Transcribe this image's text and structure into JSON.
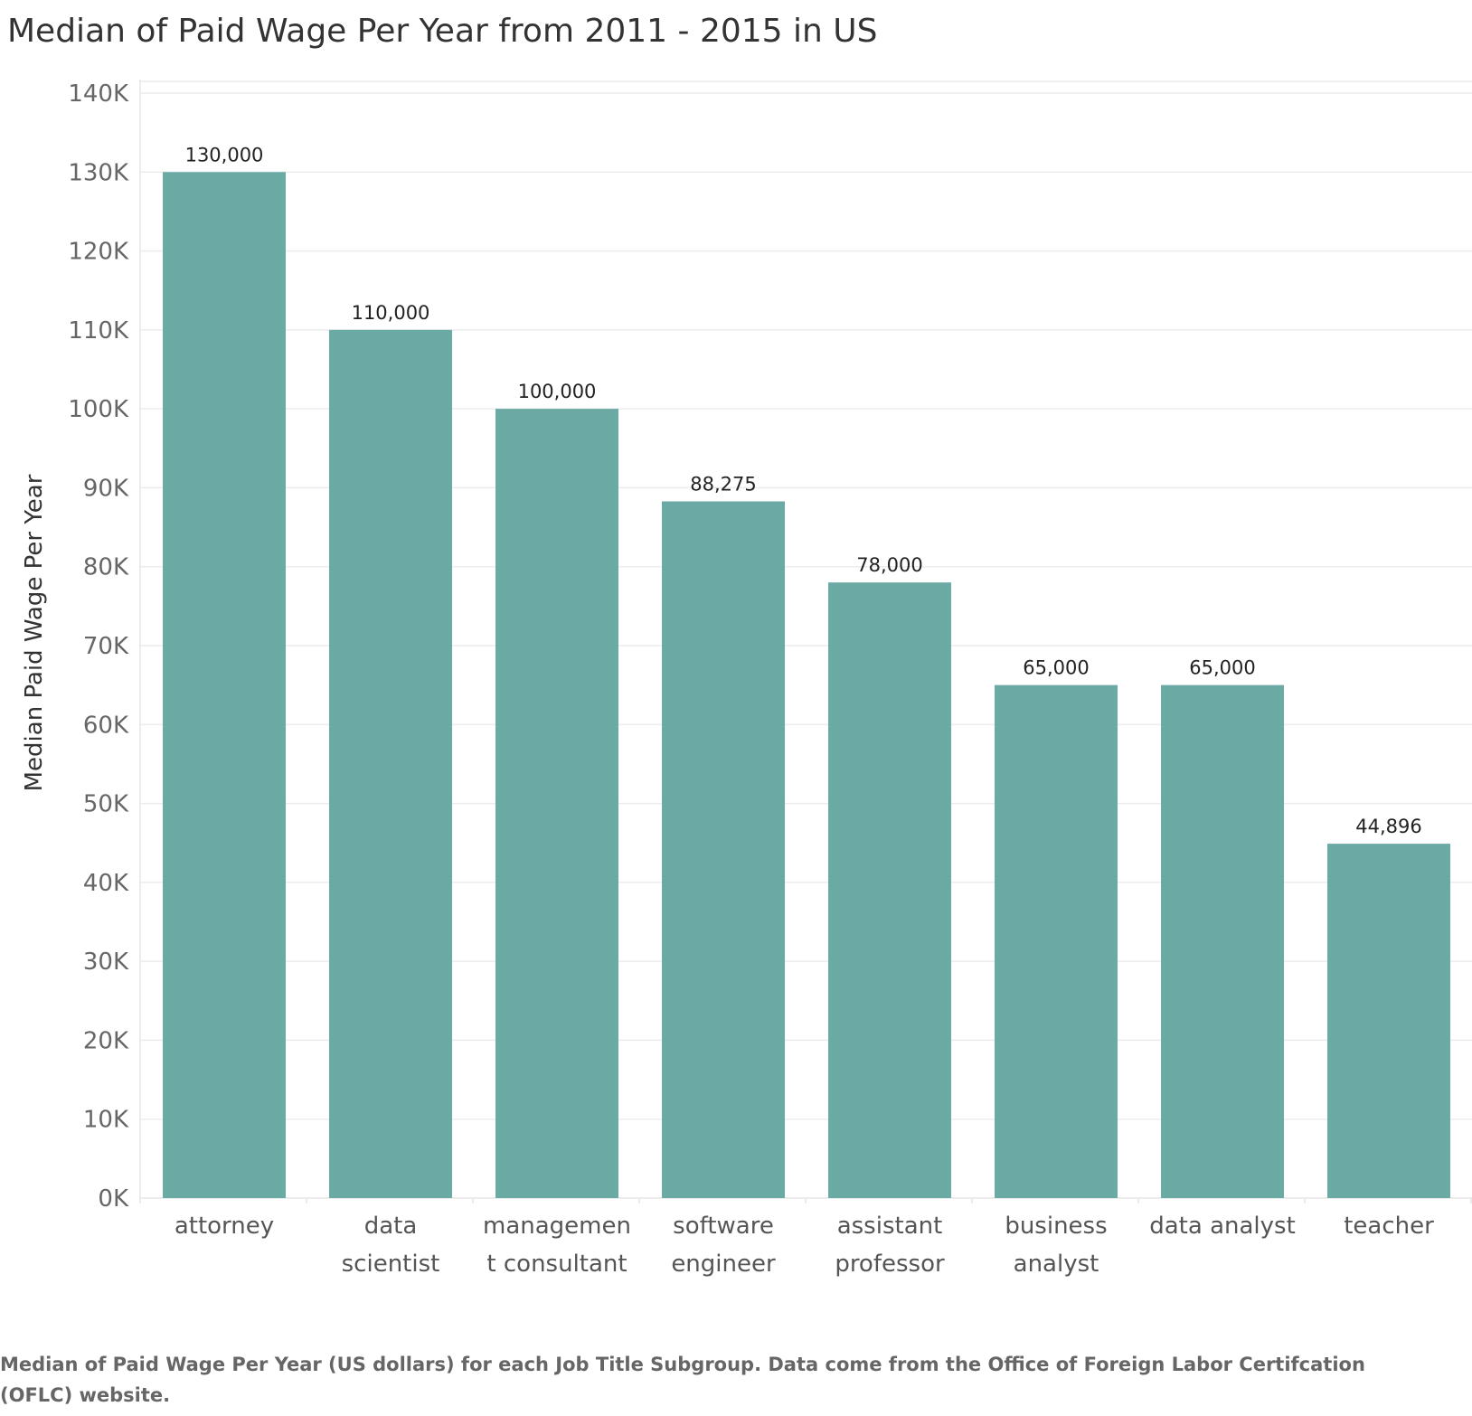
{
  "chart_data": {
    "type": "bar",
    "title": "Median of Paid Wage Per Year from 2011 - 2015 in US",
    "ylabel": "Median Paid Wage Per Year",
    "xlabel": "",
    "categories": [
      [
        "attorney"
      ],
      [
        "data",
        "scientist"
      ],
      [
        "managemen",
        "t consultant"
      ],
      [
        "software",
        "engineer"
      ],
      [
        "assistant",
        "professor"
      ],
      [
        "business",
        "analyst"
      ],
      [
        "data analyst"
      ],
      [
        "teacher"
      ]
    ],
    "values": [
      130000,
      110000,
      100000,
      88275,
      78000,
      65000,
      65000,
      44896
    ],
    "data_labels": [
      "130,000",
      "110,000",
      "100,000",
      "88,275",
      "78,000",
      "65,000",
      "65,000",
      "44,896"
    ],
    "ylim": [
      0,
      140000
    ],
    "yticks": [
      0,
      10000,
      20000,
      30000,
      40000,
      50000,
      60000,
      70000,
      80000,
      90000,
      100000,
      110000,
      120000,
      130000,
      140000
    ],
    "ytick_labels": [
      "0K",
      "10K",
      "20K",
      "30K",
      "40K",
      "50K",
      "60K",
      "70K",
      "80K",
      "90K",
      "100K",
      "110K",
      "120K",
      "130K",
      "140K"
    ],
    "grid": true,
    "legend": "none",
    "bar_color": "#6aa9a4",
    "gridline_color": "#ececec"
  },
  "caption": "Median of Paid Wage Per Year (US dollars) for each Job Title Subgroup. Data come from the Office of Foreign Labor Certifcation (OFLC) website."
}
